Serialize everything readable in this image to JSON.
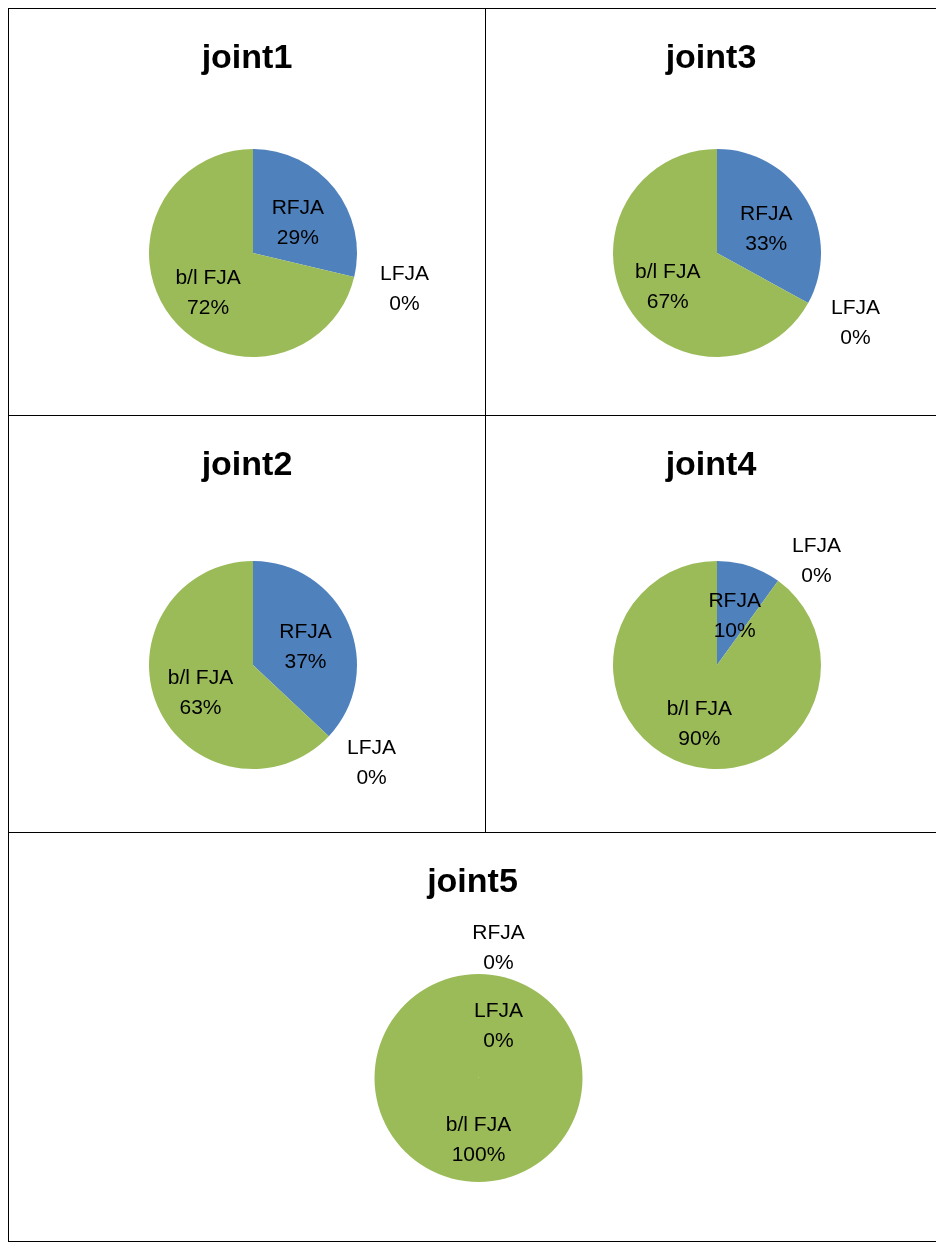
{
  "chart_data": [
    {
      "type": "pie",
      "title": "joint1",
      "categories": [
        "RFJA",
        "LFJA",
        "b/l FJA"
      ],
      "values": [
        29,
        0,
        72
      ],
      "value_labels": [
        "29%",
        "0%",
        "72%"
      ],
      "colors": [
        "#4f81bd",
        "#c0504d",
        "#9bbb59"
      ]
    },
    {
      "type": "pie",
      "title": "joint3",
      "categories": [
        "RFJA",
        "LFJA",
        "b/l FJA"
      ],
      "values": [
        33,
        0,
        67
      ],
      "value_labels": [
        "33%",
        "0%",
        "67%"
      ],
      "colors": [
        "#4f81bd",
        "#c0504d",
        "#9bbb59"
      ]
    },
    {
      "type": "pie",
      "title": "joint2",
      "categories": [
        "RFJA",
        "LFJA",
        "b/l FJA"
      ],
      "values": [
        37,
        0,
        63
      ],
      "value_labels": [
        "37%",
        "0%",
        "63%"
      ],
      "colors": [
        "#4f81bd",
        "#c0504d",
        "#9bbb59"
      ]
    },
    {
      "type": "pie",
      "title": "joint4",
      "categories": [
        "RFJA",
        "LFJA",
        "b/l FJA"
      ],
      "values": [
        10,
        0,
        90
      ],
      "value_labels": [
        "10%",
        "0%",
        "90%"
      ],
      "colors": [
        "#4f81bd",
        "#c0504d",
        "#9bbb59"
      ]
    },
    {
      "type": "pie",
      "title": "joint5",
      "categories": [
        "RFJA",
        "LFJA",
        "b/l FJA"
      ],
      "values": [
        0,
        0,
        100
      ],
      "value_labels": [
        "0%",
        "0%",
        "100%"
      ],
      "colors": [
        "#4f81bd",
        "#c0504d",
        "#9bbb59"
      ]
    }
  ]
}
